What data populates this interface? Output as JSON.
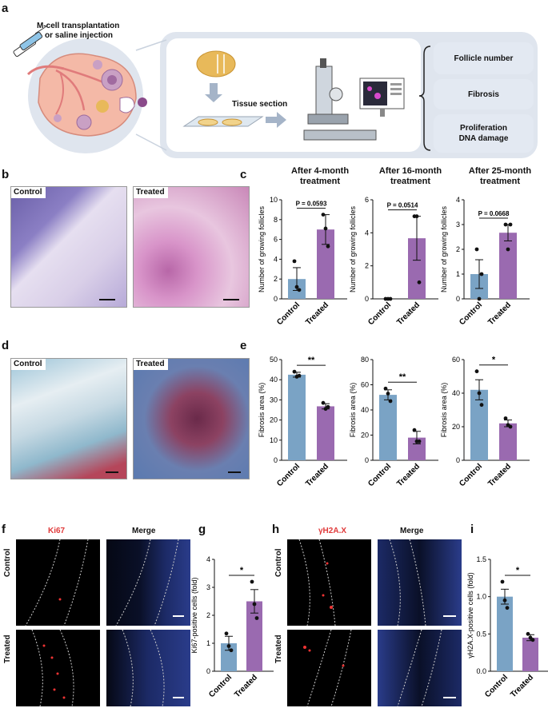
{
  "colors": {
    "control": "#7aa3c5",
    "treated": "#9a6ab0",
    "panel_bg": "#dfe5ee"
  },
  "panel_labels": {
    "a": "a",
    "b": "b",
    "c": "c",
    "d": "d",
    "e": "e",
    "f": "f",
    "g": "g",
    "h": "h",
    "i": "i"
  },
  "a": {
    "injection_text_1": "M-cell transplantation",
    "injection_text_2": "or saline injection",
    "tissue_section": "Tissue section",
    "outcomes": [
      "Follicle number",
      "Fibrosis",
      "Proliferation",
      "DNA damage"
    ]
  },
  "b": {
    "control": "Control",
    "treated": "Treated"
  },
  "d": {
    "control": "Control",
    "treated": "Treated"
  },
  "f": {
    "ki67": "Ki67",
    "merge": "Merge",
    "row_control": "Control",
    "row_treated": "Treated"
  },
  "h": {
    "marker": "γH2A.X",
    "merge": "Merge",
    "row_control": "Control",
    "row_treated": "Treated"
  },
  "chart_data": [
    {
      "panel": "c",
      "type": "bar",
      "title": "After 4-month treatment",
      "categories": [
        "Control",
        "Treated"
      ],
      "values": [
        2.0,
        7.0
      ],
      "errors": [
        1.15,
        1.5
      ],
      "points": [
        [
          3.8,
          1.2,
          0.9
        ],
        [
          8.5,
          7.1,
          5.3
        ]
      ],
      "ylabel": "Number of growing follicles",
      "ylim": [
        0,
        10
      ],
      "yticks": [
        0,
        2,
        4,
        6,
        8,
        10
      ],
      "significance": "P = 0.0593"
    },
    {
      "panel": "c",
      "type": "bar",
      "title": "After 16-month treatment",
      "categories": [
        "Control",
        "Treated"
      ],
      "values": [
        0.0,
        3.67
      ],
      "errors": [
        0,
        1.33
      ],
      "points": [
        [
          0,
          0,
          0
        ],
        [
          5,
          5,
          1
        ]
      ],
      "ylabel": "Number of growing follicles",
      "ylim": [
        0,
        6
      ],
      "yticks": [
        0,
        2,
        4,
        6
      ],
      "significance": "P = 0.0514"
    },
    {
      "panel": "c",
      "type": "bar",
      "title": "After 25-month treatment",
      "categories": [
        "Control",
        "Treated"
      ],
      "values": [
        1.0,
        2.67
      ],
      "errors": [
        0.58,
        0.33
      ],
      "points": [
        [
          2,
          0,
          1
        ],
        [
          3,
          2,
          3
        ]
      ],
      "ylabel": "Number of growing follicles",
      "ylim": [
        0,
        4
      ],
      "yticks": [
        0,
        1,
        2,
        3,
        4
      ],
      "significance": "P = 0.0668"
    },
    {
      "panel": "e",
      "type": "bar",
      "categories": [
        "Control",
        "Treated"
      ],
      "values": [
        42.5,
        26.8
      ],
      "errors": [
        1.2,
        1.3
      ],
      "points": [
        [
          44,
          41.5,
          42
        ],
        [
          28.5,
          25.5,
          26.5
        ]
      ],
      "ylabel": "Fibrosis area (%)",
      "ylim": [
        0,
        50
      ],
      "yticks": [
        0,
        10,
        20,
        30,
        40,
        50
      ],
      "significance": "**"
    },
    {
      "panel": "e",
      "type": "bar",
      "categories": [
        "Control",
        "Treated"
      ],
      "values": [
        52,
        18
      ],
      "errors": [
        4,
        5
      ],
      "points": [
        [
          57,
          53,
          47
        ],
        [
          24,
          15,
          15
        ]
      ],
      "ylabel": "Fibrosis area (%)",
      "ylim": [
        0,
        80
      ],
      "yticks": [
        0,
        20,
        40,
        60,
        80
      ],
      "significance": "**"
    },
    {
      "panel": "e",
      "type": "bar",
      "categories": [
        "Control",
        "Treated"
      ],
      "values": [
        42,
        22
      ],
      "errors": [
        6,
        2
      ],
      "points": [
        [
          53,
          40,
          33
        ],
        [
          25,
          21,
          20
        ]
      ],
      "ylabel": "Fibrosis area (%)",
      "ylim": [
        0,
        60
      ],
      "yticks": [
        0,
        20,
        40,
        60
      ],
      "significance": "*"
    },
    {
      "panel": "g",
      "type": "bar",
      "categories": [
        "Control",
        "Treated"
      ],
      "values": [
        1.0,
        2.5
      ],
      "errors": [
        0.25,
        0.42
      ],
      "points": [
        [
          1.35,
          0.9,
          0.75
        ],
        [
          3.2,
          2.4,
          1.9
        ]
      ],
      "ylabel": "Ki67-positive cells (fold)",
      "ylim": [
        0,
        4
      ],
      "yticks": [
        0,
        1,
        2,
        3,
        4
      ],
      "significance": "*"
    },
    {
      "panel": "i",
      "type": "bar",
      "categories": [
        "Control",
        "Treated"
      ],
      "values": [
        1.0,
        0.45
      ],
      "errors": [
        0.1,
        0.04
      ],
      "points": [
        [
          1.2,
          0.95,
          0.85
        ],
        [
          0.5,
          0.45,
          0.42
        ]
      ],
      "ylabel": "γH2A.X-positive cells (fold)",
      "ylim": [
        0,
        1.5
      ],
      "yticks": [
        "0.0",
        "0.5",
        "1.0",
        "1.5"
      ],
      "significance": "*"
    }
  ]
}
